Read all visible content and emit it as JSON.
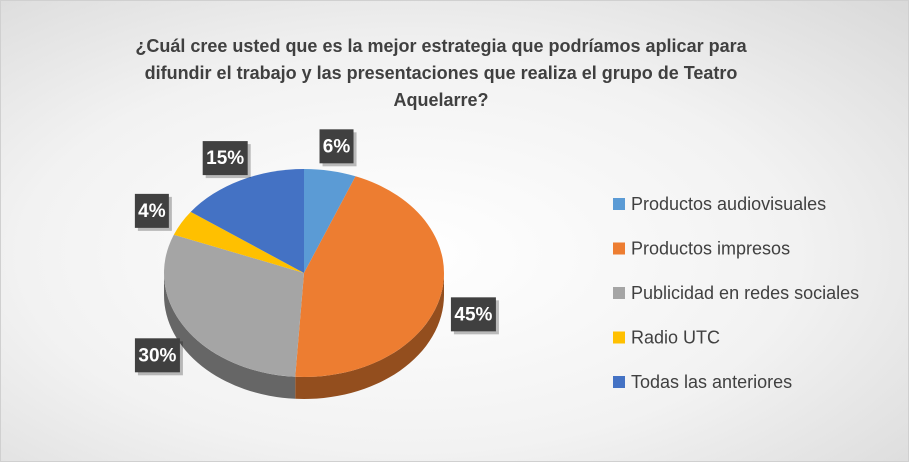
{
  "chart_data": {
    "type": "pie",
    "title": "¿Cuál cree usted que es la mejor estrategia que podríamos aplicar para difundir el trabajo y las presentaciones que realiza el grupo de Teatro Aquelarre?",
    "categories": [
      "Productos audiovisuales",
      "Productos impresos",
      "Publicidad en redes sociales",
      "Radio UTC",
      "Todas las anteriores"
    ],
    "values": [
      6,
      45,
      30,
      4,
      15
    ],
    "value_labels": [
      "6%",
      "45%",
      "30%",
      "4%",
      "15%"
    ],
    "colors": [
      "#5b9bd5",
      "#ed7d31",
      "#a5a5a5",
      "#ffc000",
      "#4472c4"
    ],
    "legend": "right"
  }
}
